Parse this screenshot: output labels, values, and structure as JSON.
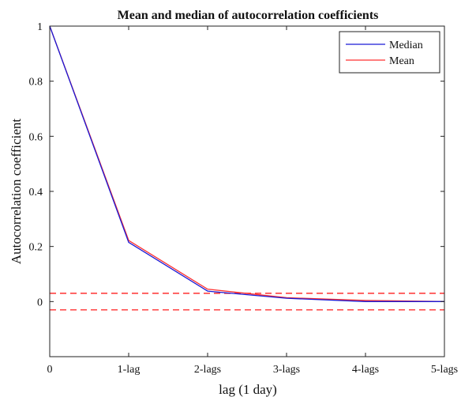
{
  "chart_data": {
    "type": "line",
    "title": "Mean and median of autocorrelation coefficients",
    "xlabel": "lag (1 day)",
    "ylabel": "Autocorrelation coefficient",
    "categories": [
      "0",
      "1-lag",
      "2-lags",
      "3-lags",
      "4-lags",
      "5-lags"
    ],
    "x": [
      0,
      1,
      2,
      3,
      4,
      5
    ],
    "ylim": [
      -0.2,
      1
    ],
    "yticks": [
      "0",
      "0.2",
      "0.4",
      "0.6",
      "0.8",
      "1"
    ],
    "series": [
      {
        "name": "Median",
        "color": "#1a1ad6",
        "values": [
          1,
          0.215,
          0.038,
          0.012,
          0.0,
          0.0
        ]
      },
      {
        "name": "Mean",
        "color": "#ff3030",
        "values": [
          1,
          0.222,
          0.045,
          0.014,
          0.004,
          0.0
        ]
      }
    ],
    "reference_lines": [
      {
        "y": 0.03,
        "style": "dashed",
        "color": "#ff3030"
      },
      {
        "y": -0.03,
        "style": "dashed",
        "color": "#ff3030"
      }
    ],
    "legend": "top-right",
    "grid": false
  }
}
